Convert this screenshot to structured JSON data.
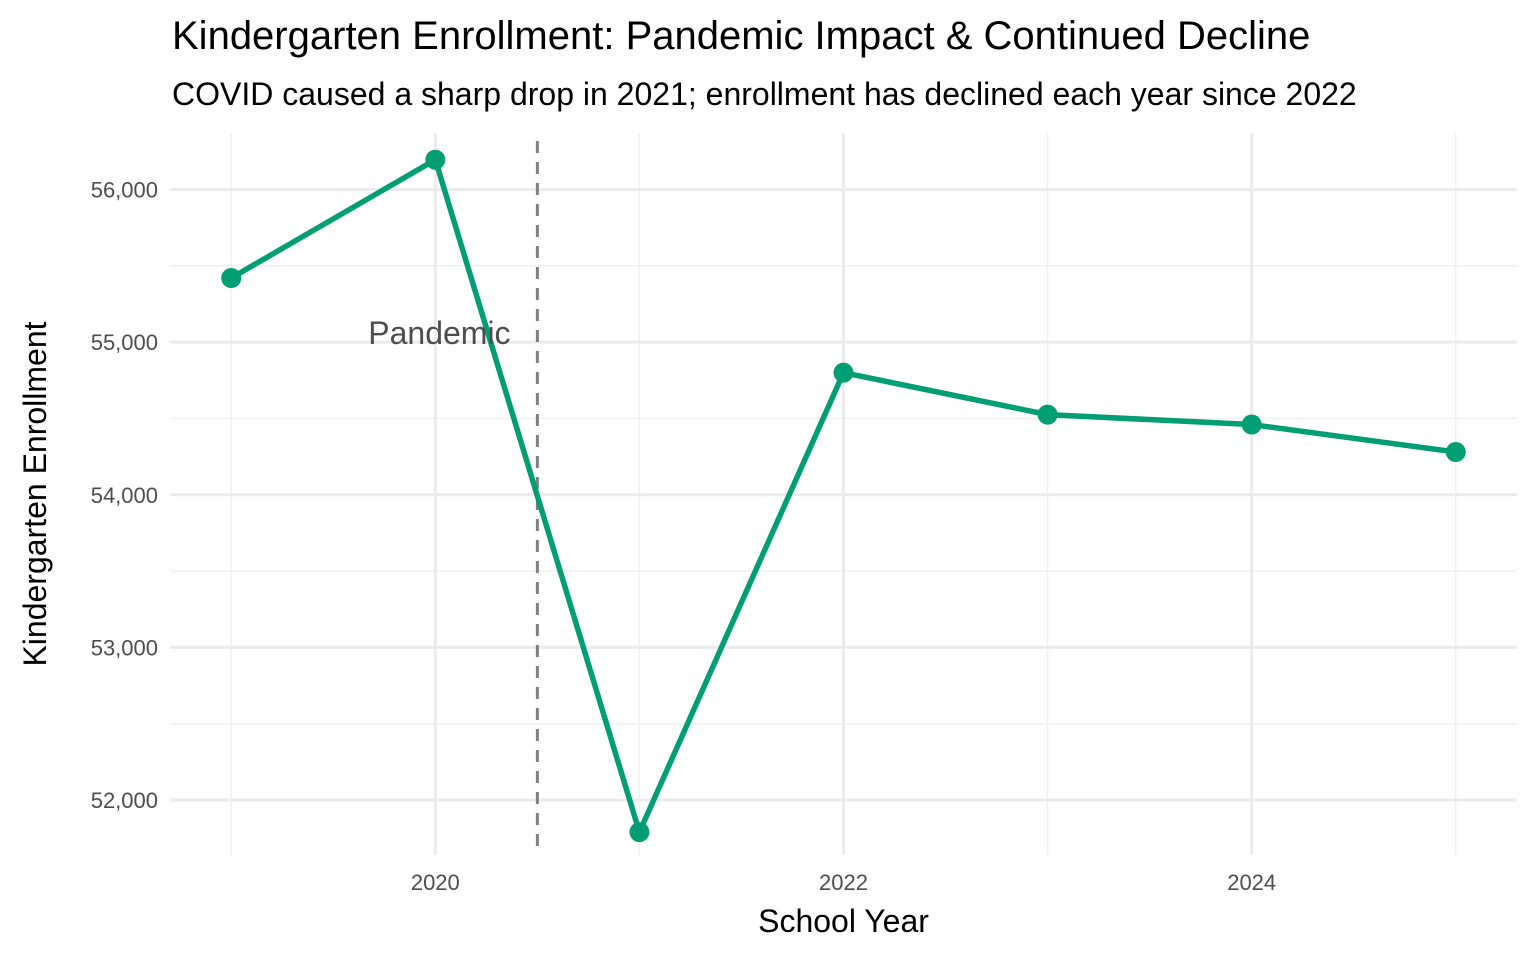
{
  "chart_data": {
    "type": "line",
    "title": "Kindergarten Enrollment: Pandemic Impact & Continued Decline",
    "subtitle": "COVID caused a sharp drop in 2021; enrollment has declined each year since 2022",
    "xlabel": "School Year",
    "ylabel": "Kindergarten Enrollment",
    "x": [
      2019,
      2020,
      2021,
      2022,
      2023,
      2024,
      2025
    ],
    "values": [
      55420,
      56195,
      51790,
      54800,
      54525,
      54460,
      54280
    ],
    "xlim": [
      2018.7,
      2025.3
    ],
    "ylim": [
      51640,
      56370
    ],
    "xticks": [
      2020,
      2022,
      2024
    ],
    "xtick_labels": [
      "2020",
      "2022",
      "2024"
    ],
    "yticks": [
      52000,
      53000,
      54000,
      55000,
      56000
    ],
    "ytick_labels": [
      "52,000",
      "53,000",
      "54,000",
      "55,000",
      "56,000"
    ],
    "grid": true,
    "line_color": "#009E73",
    "vline": {
      "x": 2020.5,
      "color": "#808080",
      "style": "dashed"
    },
    "annotation": {
      "text": "Pandemic",
      "x": 2020.02,
      "y": 55060
    }
  }
}
